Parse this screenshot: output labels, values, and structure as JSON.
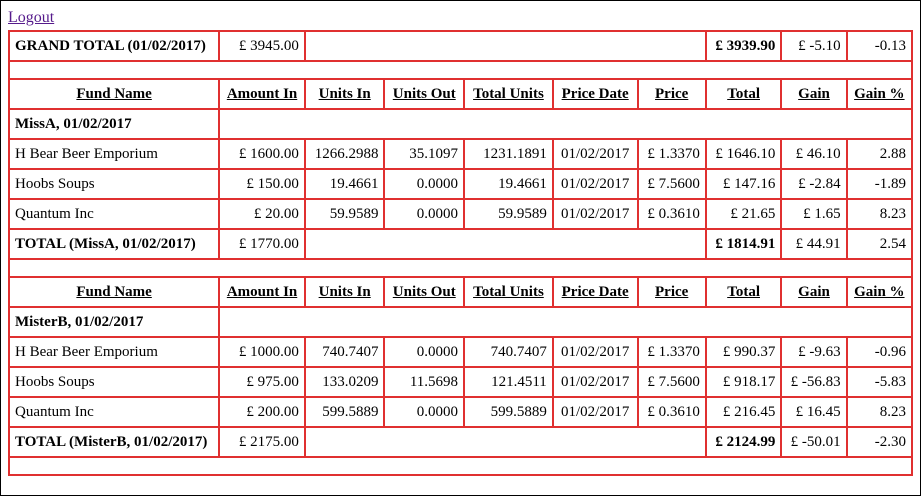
{
  "nav": {
    "logout": "Logout"
  },
  "grand_total": {
    "label": "GRAND TOTAL (01/02/2017)",
    "amount_in": "£ 3945.00",
    "total": "£ 3939.90",
    "gain": "£ -5.10",
    "gain_pct": "-0.13"
  },
  "headers": [
    "Fund Name",
    "Amount In",
    "Units In",
    "Units Out",
    "Total Units",
    "Price Date",
    "Price",
    "Total",
    "Gain",
    "Gain %"
  ],
  "groups": [
    {
      "title": "MissA, 01/02/2017",
      "rows": [
        [
          "H Bear Beer Emporium",
          "£ 1600.00",
          "1266.2988",
          "35.1097",
          "1231.1891",
          "01/02/2017",
          "£ 1.3370",
          "£ 1646.10",
          "£ 46.10",
          "2.88"
        ],
        [
          "Hoobs Soups",
          "£ 150.00",
          "19.4661",
          "0.0000",
          "19.4661",
          "01/02/2017",
          "£ 7.5600",
          "£ 147.16",
          "£ -2.84",
          "-1.89"
        ],
        [
          "Quantum Inc",
          "£ 20.00",
          "59.9589",
          "0.0000",
          "59.9589",
          "01/02/2017",
          "£ 0.3610",
          "£ 21.65",
          "£ 1.65",
          "8.23"
        ]
      ],
      "total": {
        "label": "TOTAL (MissA, 01/02/2017)",
        "amount_in": "£ 1770.00",
        "total": "£ 1814.91",
        "gain": "£ 44.91",
        "gain_pct": "2.54"
      }
    },
    {
      "title": "MisterB, 01/02/2017",
      "rows": [
        [
          "H Bear Beer Emporium",
          "£ 1000.00",
          "740.7407",
          "0.0000",
          "740.7407",
          "01/02/2017",
          "£ 1.3370",
          "£ 990.37",
          "£ -9.63",
          "-0.96"
        ],
        [
          "Hoobs Soups",
          "£ 975.00",
          "133.0209",
          "11.5698",
          "121.4511",
          "01/02/2017",
          "£ 7.5600",
          "£ 918.17",
          "£ -56.83",
          "-5.83"
        ],
        [
          "Quantum Inc",
          "£ 200.00",
          "599.5889",
          "0.0000",
          "599.5889",
          "01/02/2017",
          "£ 0.3610",
          "£ 216.45",
          "£ 16.45",
          "8.23"
        ]
      ],
      "total": {
        "label": "TOTAL (MisterB, 01/02/2017)",
        "amount_in": "£ 2175.00",
        "total": "£ 2124.99",
        "gain": "£ -50.01",
        "gain_pct": "-2.30"
      }
    }
  ]
}
